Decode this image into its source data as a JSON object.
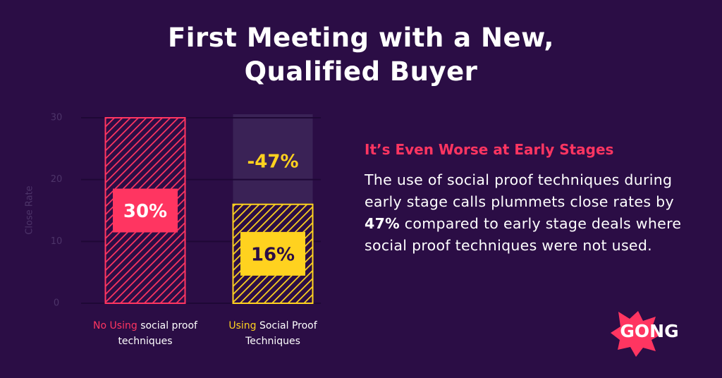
{
  "chart_data": {
    "type": "bar",
    "title": "First Meeting with a New, Qualified Buyer",
    "ylabel": "Close Rate",
    "categories": [
      [
        "No Using",
        "social proof techniques"
      ],
      [
        "Using",
        "Social Proof Techniques"
      ]
    ],
    "values": [
      30,
      16
    ],
    "value_labels": [
      "30%",
      "16%"
    ],
    "colors": [
      "#ff3561",
      "#ffd21f"
    ],
    "label_text_colors": [
      "#ffffff",
      "#2b0d45"
    ],
    "ylim": [
      0,
      30
    ],
    "yticks": [
      0,
      10,
      20,
      30
    ],
    "grid": true,
    "annotation": "-47%"
  },
  "side_note": {
    "heading": "It’s Even Worse at Early Stages",
    "body": [
      "The use of social proof techniques during early stage calls plummets close rates by ",
      "47%",
      " compared to early stage deals where social proof techniques were not used."
    ]
  },
  "logo": "GONG"
}
